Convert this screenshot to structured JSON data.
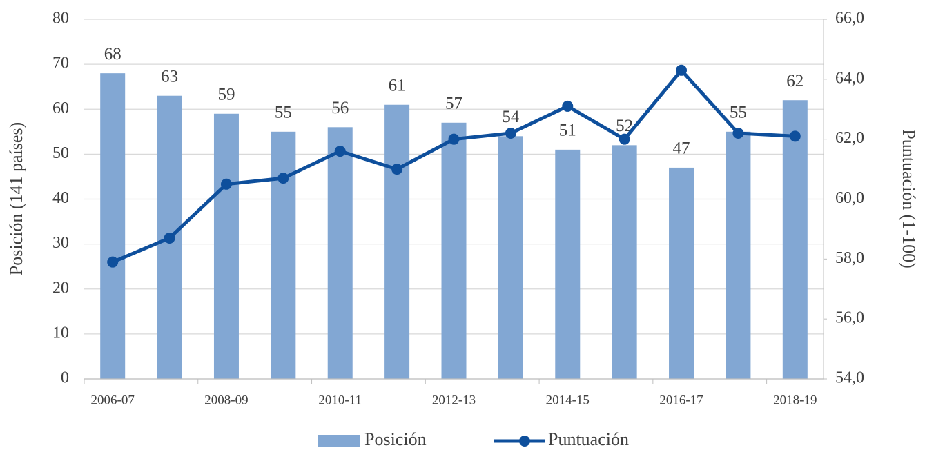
{
  "chart_data": {
    "type": "bar_line",
    "categories": [
      "2006-07",
      null,
      "2008-09",
      null,
      "2010-11",
      null,
      "2012-13",
      null,
      "2014-15",
      null,
      "2016-17",
      null,
      "2018-19"
    ],
    "series": [
      {
        "name": "Posición",
        "type": "bar",
        "color": "#82a7d3",
        "values": [
          68,
          63,
          59,
          55,
          56,
          61,
          57,
          54,
          51,
          52,
          47,
          55,
          62
        ]
      },
      {
        "name": "Puntuación",
        "type": "line",
        "color": "#0e4f9c",
        "axis": "y2",
        "values": [
          57.9,
          58.7,
          60.5,
          60.7,
          61.6,
          61.0,
          62.0,
          62.2,
          63.1,
          62.0,
          64.3,
          62.2,
          62.1
        ]
      }
    ],
    "ylabel": "Posición (141 países)",
    "y2label": "Puntuación (1-100)",
    "ylim": [
      0,
      80
    ],
    "yticks": [
      0,
      10,
      20,
      30,
      40,
      50,
      60,
      70,
      80
    ],
    "y2lim": [
      54,
      66
    ],
    "y2ticks": [
      {
        "value": 54,
        "label": "54,0"
      },
      {
        "value": 56,
        "label": "56,0"
      },
      {
        "value": 58,
        "label": "58,0"
      },
      {
        "value": 60,
        "label": "60,0"
      },
      {
        "value": 62,
        "label": "62,0"
      },
      {
        "value": 64,
        "label": "64,0"
      },
      {
        "value": 66,
        "label": "66,0"
      }
    ],
    "grid": true,
    "legend": "bottom"
  }
}
